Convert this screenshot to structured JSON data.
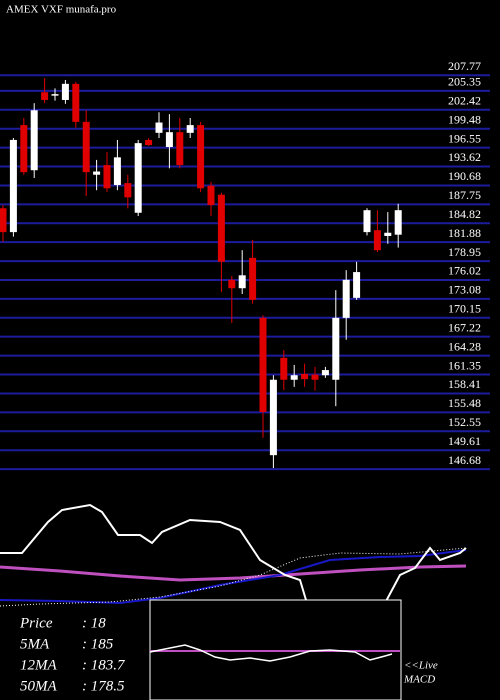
{
  "chart_data": {
    "type": "candlestick",
    "title": "AMEX VXF munafa.pro",
    "ylim": [
      145.3,
      212
    ],
    "yticks": [
      207.77,
      205.35,
      202.42,
      199.48,
      196.55,
      193.62,
      190.68,
      187.75,
      184.82,
      181.88,
      178.95,
      176.02,
      173.08,
      170.15,
      167.22,
      164.28,
      161.35,
      158.41,
      155.48,
      152.55,
      149.61,
      146.68
    ],
    "grid": true,
    "up_color": "#ffffff",
    "down_color": "#e00000",
    "open": [
      185.9,
      182.2,
      198.8,
      191.8,
      203.9,
      203.4,
      202.7,
      205.2,
      199.3,
      191.1,
      192.6,
      189.5,
      189.8,
      185.2,
      196.5,
      197.6,
      195.4,
      197.7,
      197.6,
      198.8,
      189.4,
      188.0,
      174.8,
      173.5,
      178.2,
      168.9,
      147.6,
      162.7,
      159.3,
      160.2,
      160.1,
      160.0,
      159.3,
      168.9,
      172.0,
      182.2,
      182.5,
      181.6,
      181.8
    ],
    "high": [
      186.4,
      196.8,
      199.9,
      202.2,
      206.1,
      204.5,
      205.8,
      205.5,
      201.1,
      193.4,
      194.6,
      196.5,
      191.1,
      196.5,
      196.8,
      200.8,
      200.5,
      199.9,
      199.9,
      199.3,
      190.0,
      188.3,
      175.4,
      179.4,
      181.0,
      169.3,
      160.0,
      163.9,
      161.6,
      161.8,
      161.3,
      161.3,
      173.2,
      176.3,
      177.6,
      185.9,
      185.6,
      185.3,
      186.6
    ],
    "low": [
      180.7,
      181.5,
      191.1,
      190.6,
      202.2,
      202.6,
      202.1,
      198.4,
      187.8,
      188.7,
      188.4,
      188.7,
      185.9,
      184.7,
      195.6,
      196.8,
      192.1,
      192.1,
      196.8,
      188.4,
      184.7,
      172.9,
      168.1,
      172.6,
      171.1,
      150.3,
      145.6,
      157.7,
      158.2,
      158.2,
      157.6,
      159.6,
      155.2,
      165.5,
      171.7,
      181.7,
      179.1,
      180.4,
      179.8
    ],
    "close": [
      182.2,
      196.5,
      191.5,
      201.1,
      202.7,
      203.6,
      205.2,
      199.3,
      191.5,
      191.6,
      189.0,
      193.8,
      187.6,
      196.0,
      195.7,
      199.2,
      197.7,
      192.6,
      198.8,
      189.0,
      186.4,
      177.6,
      173.5,
      175.5,
      171.7,
      154.3,
      159.3,
      159.3,
      160.0,
      159.4,
      159.3,
      160.8,
      168.9,
      174.8,
      176.0,
      185.6,
      179.4,
      182.1,
      185.6
    ],
    "stats": [
      {
        "label": "Price",
        "value": ": 18"
      },
      {
        "label": "5MA",
        "value": ": 185"
      },
      {
        "label": "12MA",
        "value": ": 183.7"
      },
      {
        "label": "50MA",
        "value": ": 178.5"
      }
    ],
    "macd_label": [
      "<<Live",
      "MACD"
    ]
  }
}
